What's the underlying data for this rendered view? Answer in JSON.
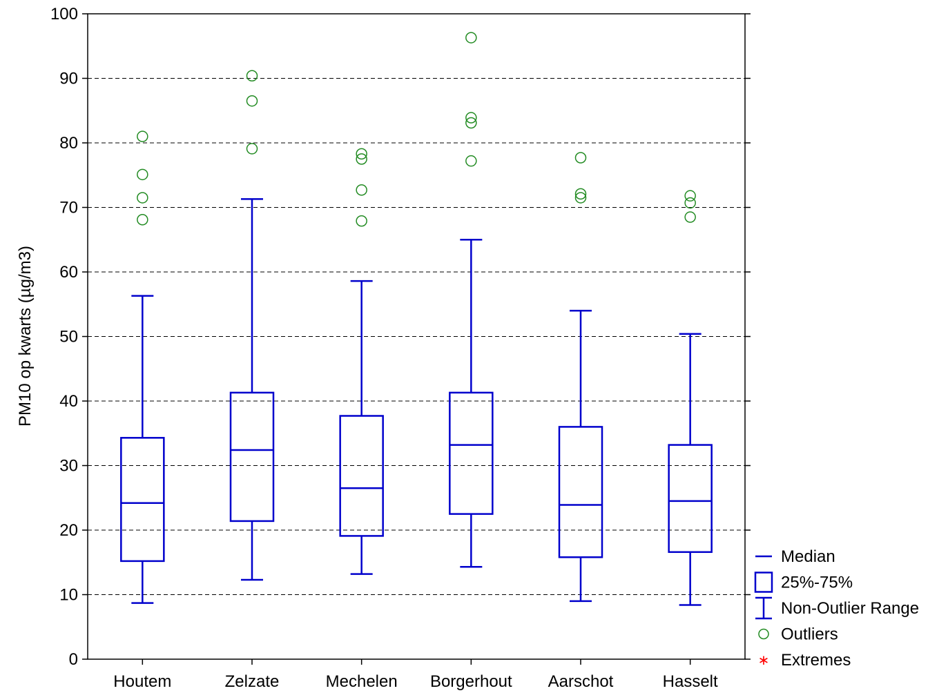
{
  "chart_data": {
    "type": "box",
    "ylabel": "PM10 op kwarts (µg/m3)",
    "ylim": [
      0,
      100
    ],
    "yticks": [
      0,
      10,
      20,
      30,
      40,
      50,
      60,
      70,
      80,
      90,
      100
    ],
    "grid": "horizontal dashed",
    "legend_position": "bottom-right, outside plot",
    "colors": {
      "box": "#0000cc",
      "outlier": "#228b22",
      "extreme": "#ff0000",
      "grid": "#000000"
    },
    "categories": [
      "Houtem",
      "Zelzate",
      "Mechelen",
      "Borgerhout",
      "Aarschot",
      "Hasselt"
    ],
    "boxes": [
      {
        "category": "Houtem",
        "min": 8.7,
        "q1": 15.2,
        "median": 24.2,
        "q3": 34.3,
        "max": 56.3,
        "outliers": [
          68.1,
          71.5,
          75.1,
          81.0
        ]
      },
      {
        "category": "Zelzate",
        "min": 12.3,
        "q1": 21.4,
        "median": 32.4,
        "q3": 41.3,
        "max": 71.3,
        "outliers": [
          79.1,
          86.5,
          90.4
        ]
      },
      {
        "category": "Mechelen",
        "min": 13.2,
        "q1": 19.1,
        "median": 26.5,
        "q3": 37.7,
        "max": 58.6,
        "outliers": [
          67.9,
          72.7,
          77.5,
          78.3
        ]
      },
      {
        "category": "Borgerhout",
        "min": 14.3,
        "q1": 22.5,
        "median": 33.2,
        "q3": 41.3,
        "max": 65.0,
        "outliers": [
          77.2,
          83.1,
          83.9,
          96.3
        ]
      },
      {
        "category": "Aarschot",
        "min": 9.0,
        "q1": 15.8,
        "median": 23.9,
        "q3": 36.0,
        "max": 54.0,
        "outliers": [
          71.5,
          72.1,
          77.7
        ]
      },
      {
        "category": "Hasselt",
        "min": 8.4,
        "q1": 16.6,
        "median": 24.5,
        "q3": 33.2,
        "max": 50.4,
        "outliers": [
          68.5,
          70.7,
          71.8
        ]
      }
    ],
    "legend": [
      {
        "symbol": "median-line",
        "label": "Median"
      },
      {
        "symbol": "box",
        "label": "25%-75%"
      },
      {
        "symbol": "whisker",
        "label": "Non-Outlier Range"
      },
      {
        "symbol": "circle",
        "label": "Outliers"
      },
      {
        "symbol": "asterisk",
        "label": "Extremes"
      }
    ]
  }
}
